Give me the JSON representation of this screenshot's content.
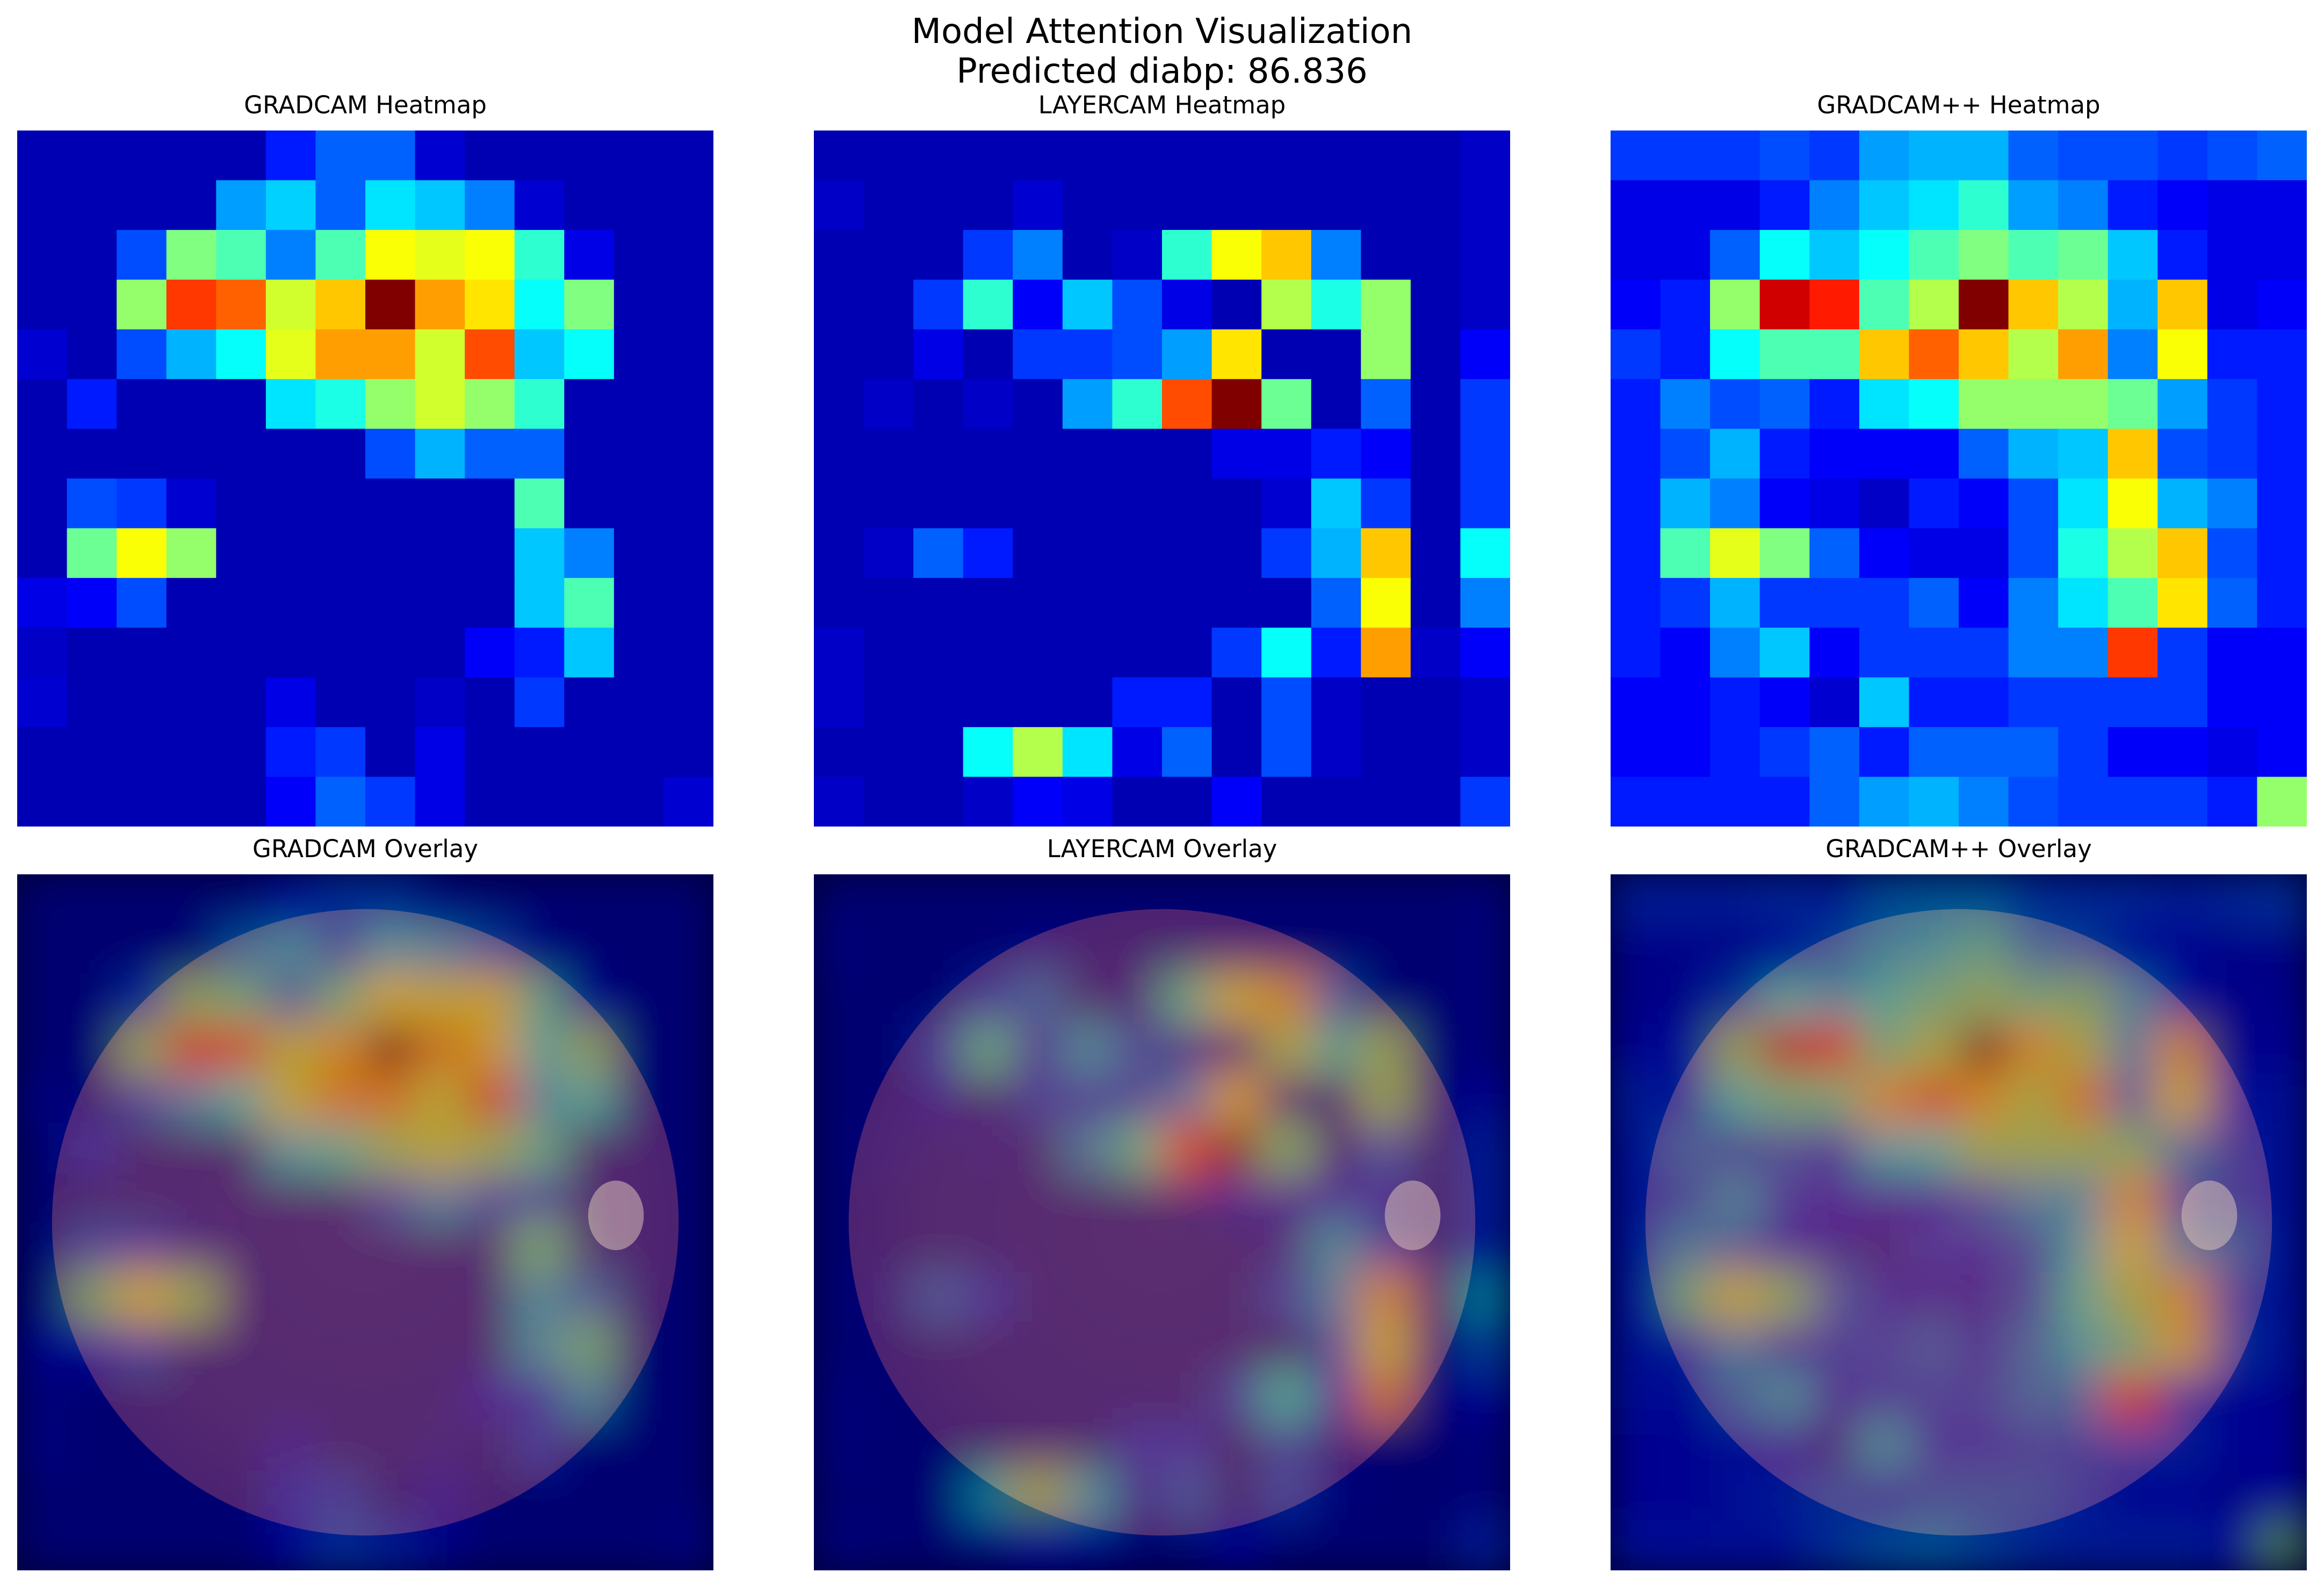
{
  "figure": {
    "title_line1": "Model Attention Visualization",
    "title_line2": "Predicted diabp: 86.836"
  },
  "panels": {
    "gradcam_heatmap": "GRADCAM Heatmap",
    "layercam_heatmap": "LAYERCAM Heatmap",
    "gradcampp_heatmap": "GRADCAM++ Heatmap",
    "gradcam_overlay": "GRADCAM Overlay",
    "layercam_overlay": "LAYERCAM Overlay",
    "gradcampp_overlay": "GRADCAM++ Overlay"
  },
  "chart_data": [
    {
      "type": "heatmap",
      "title": "GRADCAM Heatmap",
      "colormap": "jet",
      "rows": 14,
      "cols": 14,
      "values": [
        [
          0.05,
          0.05,
          0.05,
          0.05,
          0.05,
          0.15,
          0.22,
          0.22,
          0.08,
          0.05,
          0.05,
          0.05,
          0.05,
          0.05
        ],
        [
          0.05,
          0.05,
          0.05,
          0.05,
          0.28,
          0.33,
          0.22,
          0.35,
          0.32,
          0.25,
          0.08,
          0.05,
          0.05,
          0.05
        ],
        [
          0.05,
          0.05,
          0.2,
          0.5,
          0.45,
          0.25,
          0.45,
          0.62,
          0.6,
          0.62,
          0.42,
          0.1,
          0.05,
          0.05
        ],
        [
          0.05,
          0.05,
          0.52,
          0.82,
          0.78,
          0.58,
          0.68,
          1.0,
          0.72,
          0.65,
          0.38,
          0.5,
          0.05,
          0.05
        ],
        [
          0.08,
          0.05,
          0.2,
          0.3,
          0.38,
          0.6,
          0.72,
          0.72,
          0.58,
          0.8,
          0.32,
          0.38,
          0.05,
          0.05
        ],
        [
          0.05,
          0.15,
          0.05,
          0.05,
          0.05,
          0.35,
          0.4,
          0.52,
          0.58,
          0.52,
          0.42,
          0.05,
          0.05,
          0.05
        ],
        [
          0.05,
          0.05,
          0.05,
          0.05,
          0.05,
          0.05,
          0.05,
          0.2,
          0.3,
          0.22,
          0.22,
          0.05,
          0.05,
          0.05
        ],
        [
          0.05,
          0.2,
          0.18,
          0.08,
          0.05,
          0.05,
          0.05,
          0.05,
          0.05,
          0.05,
          0.45,
          0.05,
          0.05,
          0.05
        ],
        [
          0.05,
          0.48,
          0.62,
          0.52,
          0.05,
          0.05,
          0.05,
          0.05,
          0.05,
          0.05,
          0.32,
          0.25,
          0.05,
          0.05
        ],
        [
          0.1,
          0.12,
          0.2,
          0.05,
          0.05,
          0.05,
          0.05,
          0.05,
          0.05,
          0.05,
          0.32,
          0.45,
          0.05,
          0.05
        ],
        [
          0.07,
          0.05,
          0.05,
          0.05,
          0.05,
          0.05,
          0.05,
          0.05,
          0.05,
          0.12,
          0.15,
          0.32,
          0.05,
          0.05
        ],
        [
          0.08,
          0.05,
          0.05,
          0.05,
          0.05,
          0.1,
          0.05,
          0.05,
          0.07,
          0.05,
          0.18,
          0.05,
          0.05,
          0.05
        ],
        [
          0.05,
          0.05,
          0.05,
          0.05,
          0.05,
          0.15,
          0.18,
          0.05,
          0.1,
          0.05,
          0.05,
          0.05,
          0.05,
          0.05
        ],
        [
          0.05,
          0.05,
          0.05,
          0.05,
          0.05,
          0.12,
          0.22,
          0.18,
          0.1,
          0.05,
          0.05,
          0.05,
          0.05,
          0.08
        ]
      ]
    },
    {
      "type": "heatmap",
      "title": "LAYERCAM Heatmap",
      "colormap": "jet",
      "rows": 14,
      "cols": 14,
      "values": [
        [
          0.05,
          0.05,
          0.05,
          0.05,
          0.05,
          0.05,
          0.05,
          0.05,
          0.05,
          0.05,
          0.05,
          0.05,
          0.05,
          0.07
        ],
        [
          0.07,
          0.05,
          0.05,
          0.05,
          0.08,
          0.05,
          0.05,
          0.05,
          0.05,
          0.05,
          0.05,
          0.05,
          0.05,
          0.07
        ],
        [
          0.05,
          0.05,
          0.05,
          0.18,
          0.25,
          0.05,
          0.07,
          0.42,
          0.62,
          0.68,
          0.25,
          0.05,
          0.05,
          0.07
        ],
        [
          0.05,
          0.05,
          0.18,
          0.42,
          0.12,
          0.32,
          0.2,
          0.1,
          0.05,
          0.55,
          0.4,
          0.52,
          0.05,
          0.07
        ],
        [
          0.05,
          0.05,
          0.1,
          0.05,
          0.18,
          0.18,
          0.2,
          0.28,
          0.65,
          0.05,
          0.05,
          0.52,
          0.05,
          0.12
        ],
        [
          0.05,
          0.07,
          0.05,
          0.07,
          0.05,
          0.28,
          0.42,
          0.8,
          1.0,
          0.48,
          0.05,
          0.22,
          0.05,
          0.18
        ],
        [
          0.05,
          0.05,
          0.05,
          0.05,
          0.05,
          0.05,
          0.05,
          0.05,
          0.1,
          0.1,
          0.15,
          0.12,
          0.05,
          0.18
        ],
        [
          0.05,
          0.05,
          0.05,
          0.05,
          0.05,
          0.05,
          0.05,
          0.05,
          0.05,
          0.08,
          0.32,
          0.18,
          0.05,
          0.18
        ],
        [
          0.05,
          0.07,
          0.22,
          0.15,
          0.05,
          0.05,
          0.05,
          0.05,
          0.05,
          0.18,
          0.3,
          0.68,
          0.05,
          0.38
        ],
        [
          0.05,
          0.05,
          0.05,
          0.05,
          0.05,
          0.05,
          0.05,
          0.05,
          0.05,
          0.05,
          0.22,
          0.62,
          0.05,
          0.25
        ],
        [
          0.07,
          0.05,
          0.05,
          0.05,
          0.05,
          0.05,
          0.05,
          0.05,
          0.18,
          0.38,
          0.15,
          0.72,
          0.07,
          0.12
        ],
        [
          0.07,
          0.05,
          0.05,
          0.05,
          0.05,
          0.05,
          0.15,
          0.15,
          0.05,
          0.2,
          0.07,
          0.05,
          0.05,
          0.07
        ],
        [
          0.05,
          0.05,
          0.05,
          0.38,
          0.55,
          0.35,
          0.1,
          0.22,
          0.05,
          0.2,
          0.07,
          0.05,
          0.05,
          0.07
        ],
        [
          0.07,
          0.05,
          0.05,
          0.07,
          0.12,
          0.1,
          0.05,
          0.05,
          0.12,
          0.05,
          0.05,
          0.05,
          0.05,
          0.18
        ]
      ]
    },
    {
      "type": "heatmap",
      "title": "GRADCAM++ Heatmap",
      "colormap": "jet",
      "rows": 14,
      "cols": 14,
      "values": [
        [
          0.18,
          0.18,
          0.18,
          0.2,
          0.18,
          0.28,
          0.3,
          0.3,
          0.22,
          0.2,
          0.2,
          0.18,
          0.2,
          0.22
        ],
        [
          0.1,
          0.1,
          0.1,
          0.15,
          0.25,
          0.32,
          0.35,
          0.42,
          0.28,
          0.25,
          0.15,
          0.12,
          0.1,
          0.1
        ],
        [
          0.1,
          0.1,
          0.22,
          0.38,
          0.32,
          0.38,
          0.45,
          0.5,
          0.45,
          0.48,
          0.32,
          0.15,
          0.1,
          0.1
        ],
        [
          0.12,
          0.15,
          0.52,
          0.92,
          0.85,
          0.45,
          0.55,
          1.0,
          0.68,
          0.55,
          0.3,
          0.68,
          0.1,
          0.12
        ],
        [
          0.18,
          0.15,
          0.38,
          0.45,
          0.45,
          0.68,
          0.78,
          0.68,
          0.55,
          0.72,
          0.25,
          0.62,
          0.15,
          0.15
        ],
        [
          0.15,
          0.25,
          0.2,
          0.22,
          0.15,
          0.35,
          0.38,
          0.52,
          0.52,
          0.52,
          0.48,
          0.28,
          0.18,
          0.15
        ],
        [
          0.15,
          0.2,
          0.3,
          0.15,
          0.12,
          0.12,
          0.12,
          0.22,
          0.3,
          0.32,
          0.68,
          0.2,
          0.18,
          0.15
        ],
        [
          0.15,
          0.3,
          0.25,
          0.12,
          0.1,
          0.07,
          0.15,
          0.12,
          0.2,
          0.35,
          0.62,
          0.3,
          0.25,
          0.15
        ],
        [
          0.15,
          0.45,
          0.6,
          0.5,
          0.22,
          0.12,
          0.1,
          0.1,
          0.2,
          0.4,
          0.55,
          0.68,
          0.2,
          0.15
        ],
        [
          0.15,
          0.18,
          0.3,
          0.18,
          0.18,
          0.18,
          0.22,
          0.12,
          0.25,
          0.35,
          0.45,
          0.65,
          0.22,
          0.15
        ],
        [
          0.15,
          0.12,
          0.25,
          0.32,
          0.12,
          0.18,
          0.18,
          0.18,
          0.25,
          0.25,
          0.82,
          0.18,
          0.12,
          0.12
        ],
        [
          0.12,
          0.12,
          0.15,
          0.12,
          0.08,
          0.32,
          0.15,
          0.15,
          0.18,
          0.18,
          0.18,
          0.18,
          0.12,
          0.12
        ],
        [
          0.12,
          0.12,
          0.15,
          0.18,
          0.22,
          0.15,
          0.22,
          0.22,
          0.22,
          0.18,
          0.12,
          0.12,
          0.1,
          0.12
        ],
        [
          0.15,
          0.15,
          0.15,
          0.15,
          0.22,
          0.28,
          0.3,
          0.25,
          0.2,
          0.18,
          0.18,
          0.18,
          0.15,
          0.52
        ]
      ]
    }
  ]
}
